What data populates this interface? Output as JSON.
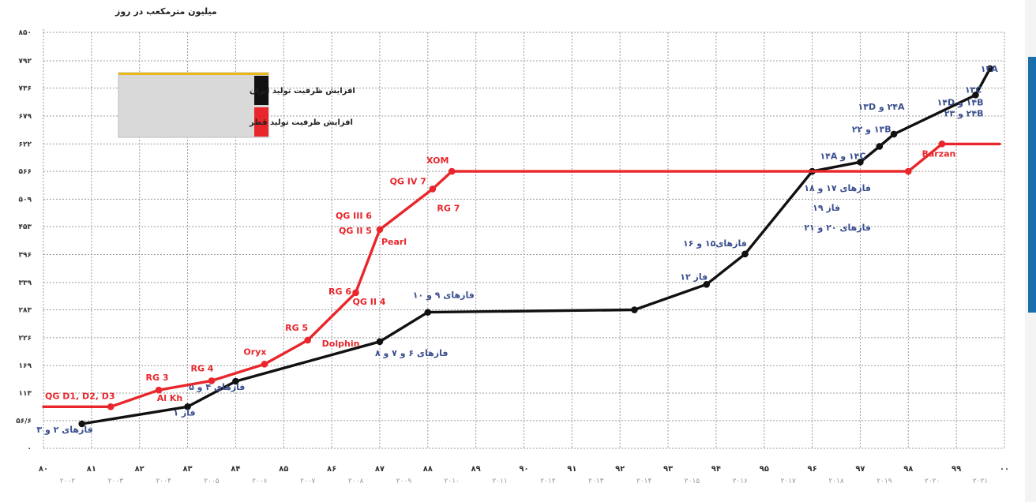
{
  "colors": {
    "iran": "#111111",
    "qatar": "#e8262b",
    "label_blue": "#3a4f8e",
    "grid": "#9a9a9a",
    "side_bar": "#1b6fa8"
  },
  "chart_data": {
    "type": "line",
    "ylabel": "میلیون مترمکعب در روز",
    "yticks": [
      "۸۵۰",
      "۷۹۲",
      "۷۳۶",
      "۶۷۹",
      "۶۲۲",
      "۵۶۶",
      "۵۰۹",
      "۴۵۳",
      "۳۹۶",
      "۳۳۹",
      "۲۸۳",
      "۲۲۶",
      "۱۶۹",
      "۱۱۳",
      "۵۶/۶",
      "۰"
    ],
    "yvalues": [
      850,
      792,
      736,
      679,
      622,
      566,
      509,
      453,
      396,
      339,
      283,
      226,
      169,
      113,
      56.6,
      0
    ],
    "ylim": [
      0,
      850
    ],
    "xlim": [
      80,
      100
    ],
    "xticks_solar": [
      "۸۰",
      "۸۱",
      "۸۲",
      "۸۳",
      "۸۴",
      "۸۵",
      "۸۶",
      "۸۷",
      "۸۸",
      "۸۹",
      "۹۰",
      "۹۱",
      "۹۲",
      "۹۳",
      "۹۴",
      "۹۵",
      "۹۶",
      "۹۷",
      "۹۸",
      "۹۹",
      "۰۰"
    ],
    "xticks_gregorian": [
      "۲۰۰۲",
      "۲۰۰۳",
      "۲۰۰۴",
      "۲۰۰۵",
      "۲۰۰۶",
      "۲۰۰۷",
      "۲۰۰۸",
      "۲۰۰۹",
      "۲۰۱۰",
      "۲۰۱۱",
      "۲۰۱۲",
      "۲۰۱۳",
      "۲۰۱۴",
      "۲۰۱۵",
      "۲۰۱۶",
      "۲۰۱۷",
      "۲۰۱۸",
      "۲۰۱۹",
      "۲۰۲۰",
      "۲۰۲۱"
    ],
    "grid": true,
    "legend_position": "top-left",
    "series": [
      {
        "name": "افزایش ظرفیت تولید ایران",
        "color": "#111111",
        "points": [
          {
            "x": 80.8,
            "y": 50
          },
          {
            "x": 83.0,
            "y": 85
          },
          {
            "x": 84.0,
            "y": 137
          },
          {
            "x": 87.0,
            "y": 218
          },
          {
            "x": 88.0,
            "y": 278
          },
          {
            "x": 92.3,
            "y": 283
          },
          {
            "x": 93.8,
            "y": 335
          },
          {
            "x": 94.6,
            "y": 397
          },
          {
            "x": 96.0,
            "y": 566
          },
          {
            "x": 97.0,
            "y": 585
          },
          {
            "x": 97.4,
            "y": 617
          },
          {
            "x": 97.7,
            "y": 642
          },
          {
            "x": 99.4,
            "y": 722
          },
          {
            "x": 99.7,
            "y": 776
          }
        ],
        "labels": [
          {
            "text": "فازهای ۲ و ۳",
            "x": 80.8,
            "y": 50
          },
          {
            "text": "فاز ۱",
            "x": 83.0,
            "y": 85
          },
          {
            "text": "فازهای ۴ و ۵",
            "x": 84.0,
            "y": 137
          },
          {
            "text": "فازهای ۶ و ۷ و ۸",
            "x": 87.0,
            "y": 218
          },
          {
            "text": "فازهای ۹ و ۱۰",
            "x": 88.0,
            "y": 278
          },
          {
            "text": "فاز ۱۲",
            "x": 93.8,
            "y": 335
          },
          {
            "text": "فازهای۱۵ و ۱۶",
            "x": 94.6,
            "y": 397
          },
          {
            "text": "فازهای ۱۷ و ۱۸",
            "x": 96.0,
            "y": 566
          },
          {
            "text": "فاز ۱۹",
            "x": 96.0,
            "y": 566
          },
          {
            "text": "فازهای ۲۰ و ۲۱",
            "x": 96.0,
            "y": 566
          },
          {
            "text": "۱۴C و ۱۴A",
            "x": 97.0,
            "y": 585
          },
          {
            "text": "۱۳B و ۲۲",
            "x": 97.4,
            "y": 617
          },
          {
            "text": "۲۴A و ۱۳D",
            "x": 97.7,
            "y": 642
          },
          {
            "text": "۱۳C",
            "x": 99.4,
            "y": 722
          },
          {
            "text": "۱۴B و ۱۴D",
            "x": 99.4,
            "y": 722
          },
          {
            "text": "۲۴B و ۲۳",
            "x": 99.4,
            "y": 722
          },
          {
            "text": "۱۳A",
            "x": 99.7,
            "y": 776
          }
        ]
      },
      {
        "name": "افزایش ظرفیت تولید قطر",
        "color": "#e8262b",
        "points": [
          {
            "x": 80.0,
            "y": 85
          },
          {
            "x": 81.4,
            "y": 85
          },
          {
            "x": 82.4,
            "y": 119
          },
          {
            "x": 83.5,
            "y": 138
          },
          {
            "x": 84.6,
            "y": 172
          },
          {
            "x": 85.5,
            "y": 221
          },
          {
            "x": 86.5,
            "y": 318
          },
          {
            "x": 87.0,
            "y": 447
          },
          {
            "x": 88.1,
            "y": 530
          },
          {
            "x": 88.5,
            "y": 566
          },
          {
            "x": 98.0,
            "y": 566
          },
          {
            "x": 98.7,
            "y": 622
          },
          {
            "x": 99.9,
            "y": 622
          }
        ],
        "labels": [
          {
            "text": "QG D1, D2, D3",
            "x": 80.0,
            "y": 85
          },
          {
            "text": "RG 3",
            "x": 82.4,
            "y": 119
          },
          {
            "text": "Al Kh",
            "x": 82.4,
            "y": 119
          },
          {
            "text": "RG 4",
            "x": 83.5,
            "y": 138
          },
          {
            "text": "Oryx",
            "x": 84.6,
            "y": 172
          },
          {
            "text": "RG 5",
            "x": 85.5,
            "y": 221
          },
          {
            "text": "Dolphin",
            "x": 85.5,
            "y": 221
          },
          {
            "text": "RG 6",
            "x": 86.5,
            "y": 318
          },
          {
            "text": "QG II 4",
            "x": 86.5,
            "y": 318
          },
          {
            "text": "QG III 6",
            "x": 87.0,
            "y": 447
          },
          {
            "text": "QG II 5",
            "x": 87.0,
            "y": 447
          },
          {
            "text": "Pearl",
            "x": 87.0,
            "y": 447
          },
          {
            "text": "QG IV 7",
            "x": 88.1,
            "y": 530
          },
          {
            "text": "RG 7",
            "x": 88.1,
            "y": 530
          },
          {
            "text": "XOM",
            "x": 88.5,
            "y": 566
          },
          {
            "text": "Barzan",
            "x": 98.7,
            "y": 622
          }
        ]
      }
    ]
  }
}
